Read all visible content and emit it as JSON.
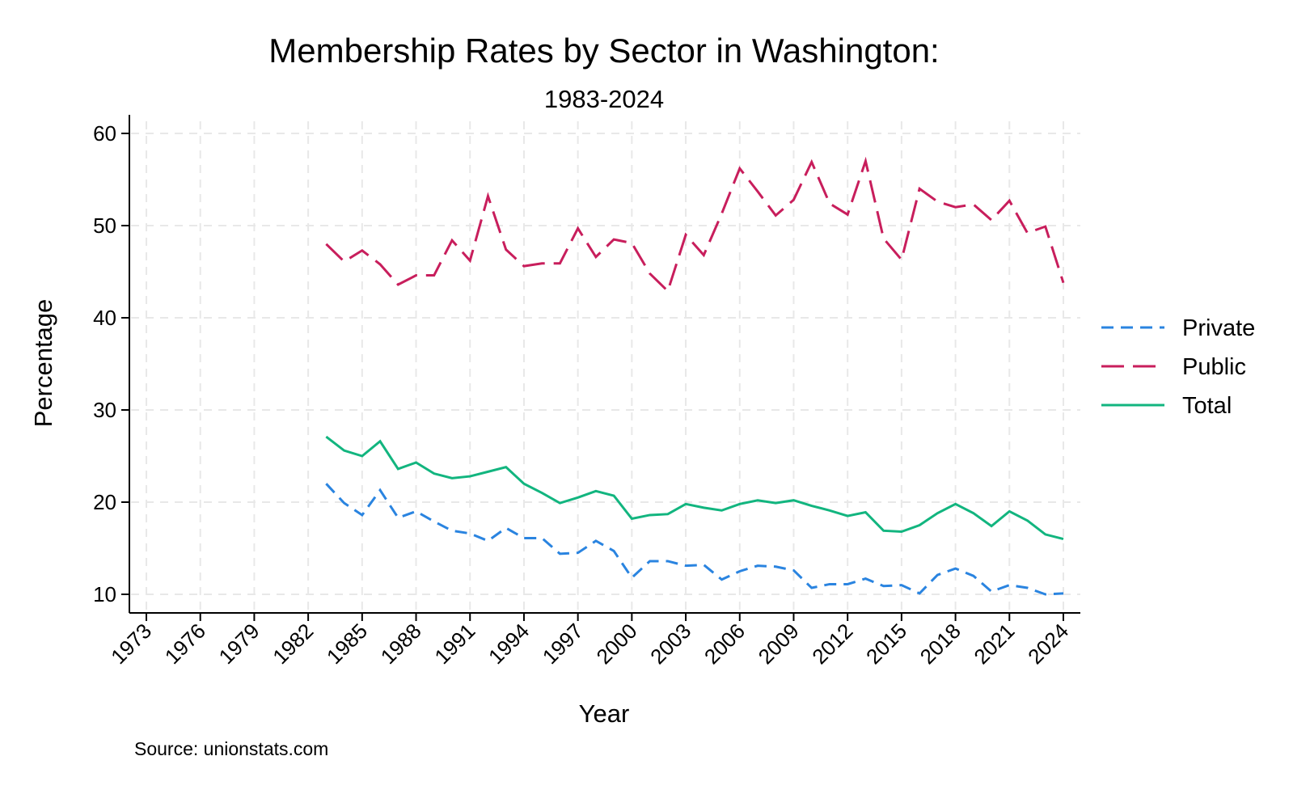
{
  "chart_data": {
    "type": "line",
    "title": "Membership Rates by Sector in Washington:",
    "subtitle": "1983-2024",
    "xlabel": "Year",
    "ylabel": "Percentage",
    "source": "Source: unionstats.com",
    "xlim": [
      1973,
      2024
    ],
    "ylim": [
      10,
      60
    ],
    "x_ticks": [
      1973,
      1976,
      1979,
      1982,
      1985,
      1988,
      1991,
      1994,
      1997,
      2000,
      2003,
      2006,
      2009,
      2012,
      2015,
      2018,
      2021,
      2024
    ],
    "y_ticks": [
      10,
      20,
      30,
      40,
      50,
      60
    ],
    "grid": true,
    "legend_position": "right",
    "x": [
      1983,
      1984,
      1985,
      1986,
      1987,
      1988,
      1989,
      1990,
      1991,
      1992,
      1993,
      1994,
      1995,
      1996,
      1997,
      1998,
      1999,
      2000,
      2001,
      2002,
      2003,
      2004,
      2005,
      2006,
      2007,
      2008,
      2009,
      2010,
      2011,
      2012,
      2013,
      2014,
      2015,
      2016,
      2017,
      2018,
      2019,
      2020,
      2021,
      2022,
      2023,
      2024
    ],
    "series": [
      {
        "name": "Private",
        "color": "#2a84e0",
        "dash": "short",
        "values": [
          22.0,
          19.9,
          18.6,
          21.3,
          18.3,
          19.0,
          17.9,
          16.9,
          16.6,
          15.8,
          17.2,
          16.1,
          16.1,
          14.4,
          14.5,
          15.8,
          14.7,
          11.8,
          13.6,
          13.6,
          13.1,
          13.2,
          11.6,
          12.5,
          13.1,
          13.0,
          12.6,
          10.7,
          11.1,
          11.1,
          11.7,
          10.9,
          11.0,
          10.1,
          12.1,
          12.8,
          12.0,
          10.3,
          11.0,
          10.7,
          10.0,
          10.1
        ]
      },
      {
        "name": "Public",
        "color": "#c81e5c",
        "dash": "long",
        "values": [
          48.0,
          46.1,
          47.3,
          45.8,
          43.6,
          44.6,
          44.6,
          48.4,
          46.2,
          53.2,
          47.4,
          45.6,
          45.9,
          45.9,
          49.7,
          46.6,
          48.5,
          48.1,
          44.8,
          42.9,
          49.0,
          46.8,
          51.3,
          56.2,
          53.7,
          51.1,
          52.8,
          56.9,
          52.4,
          51.2,
          57.0,
          48.6,
          46.3,
          54.0,
          52.6,
          52.0,
          52.3,
          50.6,
          52.7,
          49.2,
          49.9,
          43.8
        ]
      },
      {
        "name": "Total",
        "color": "#12b57f",
        "dash": "solid",
        "values": [
          27.1,
          25.6,
          25.0,
          26.6,
          23.6,
          24.3,
          23.1,
          22.6,
          22.8,
          23.3,
          23.8,
          22.0,
          21.0,
          19.9,
          20.5,
          21.2,
          20.7,
          18.2,
          18.6,
          18.7,
          19.8,
          19.4,
          19.1,
          19.8,
          20.2,
          19.9,
          20.2,
          19.6,
          19.1,
          18.5,
          18.9,
          16.9,
          16.8,
          17.5,
          18.8,
          19.8,
          18.8,
          17.4,
          19.0,
          18.0,
          16.5,
          16.0
        ]
      }
    ]
  }
}
